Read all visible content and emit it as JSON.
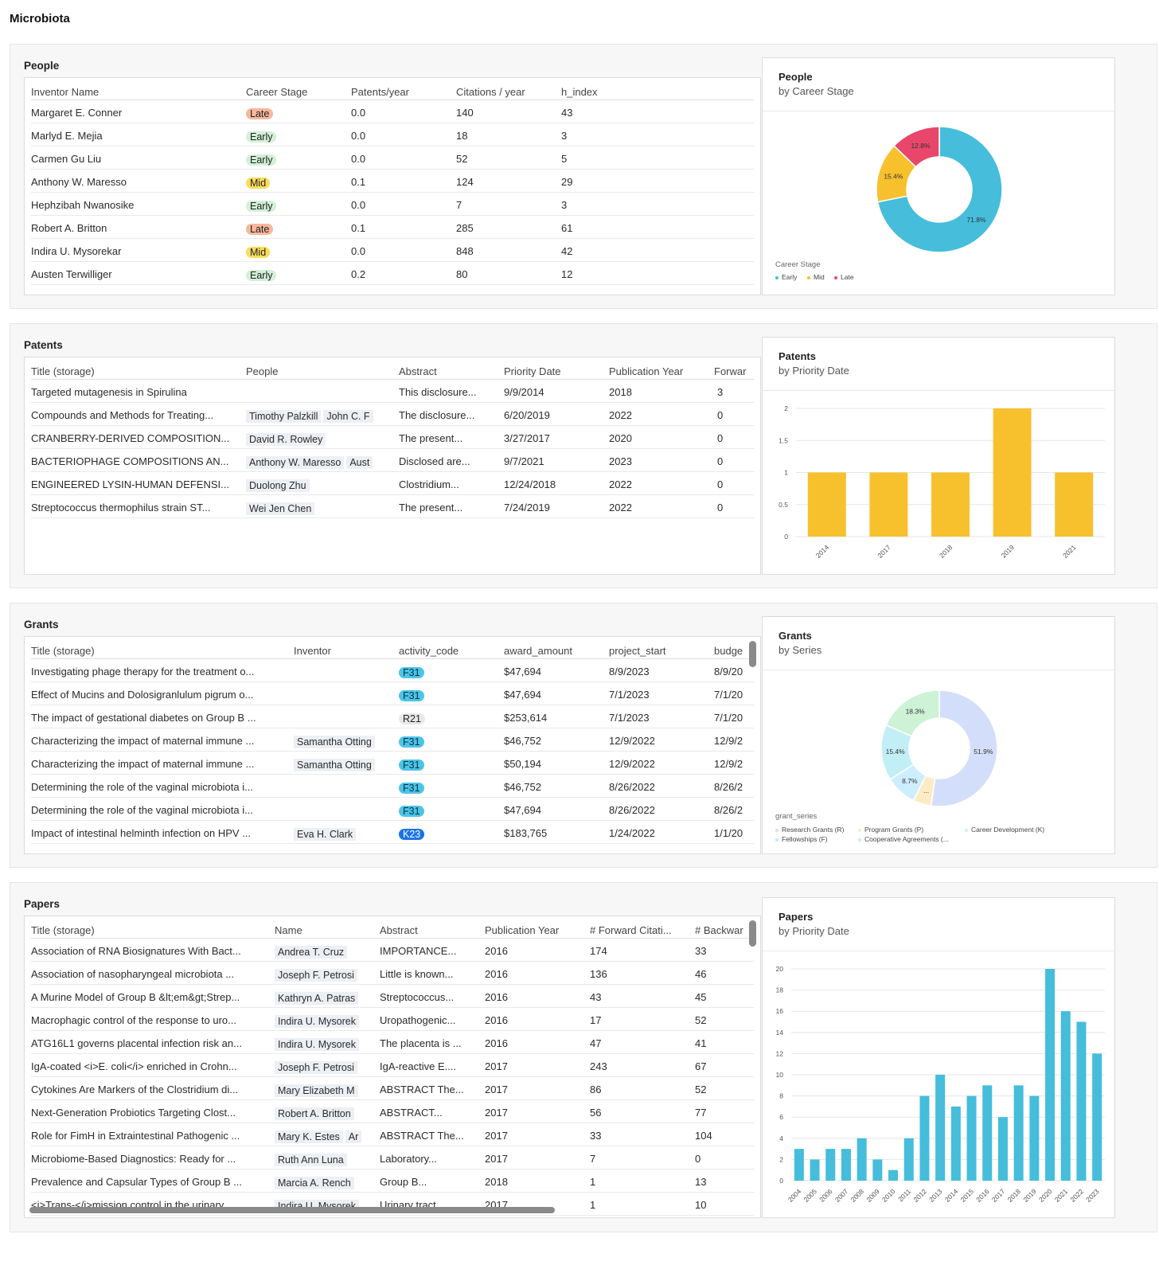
{
  "app": {
    "title": "Microbiota"
  },
  "people": {
    "title": "People",
    "columns": [
      "Inventor Name",
      "Career Stage",
      "Patents/year",
      "Citations / year",
      "h_index"
    ],
    "rows": [
      {
        "name": "Margaret E. Conner",
        "stage": "Late",
        "patents": "0.0",
        "citations": "140",
        "h": "43"
      },
      {
        "name": "Marlyd E. Mejia",
        "stage": "Early",
        "patents": "0.0",
        "citations": "18",
        "h": "3"
      },
      {
        "name": "Carmen Gu Liu",
        "stage": "Early",
        "patents": "0.0",
        "citations": "52",
        "h": "5"
      },
      {
        "name": "Anthony W. Maresso",
        "stage": "Mid",
        "patents": "0.1",
        "citations": "124",
        "h": "29"
      },
      {
        "name": "Hephzibah Nwanosike",
        "stage": "Early",
        "patents": "0.0",
        "citations": "7",
        "h": "3"
      },
      {
        "name": "Robert A. Britton",
        "stage": "Late",
        "patents": "0.1",
        "citations": "285",
        "h": "61"
      },
      {
        "name": "Indira U. Mysorekar",
        "stage": "Mid",
        "patents": "0.0",
        "citations": "848",
        "h": "42"
      },
      {
        "name": "Austen Terwilliger",
        "stage": "Early",
        "patents": "0.2",
        "citations": "80",
        "h": "12"
      }
    ],
    "chart": {
      "title": "People",
      "subtitle": "by Career Stage",
      "legend_title": "Career Stage",
      "legend": [
        "Early",
        "Mid",
        "Late"
      ],
      "colors": [
        "#45bddb",
        "#f7c12e",
        "#e8476b"
      ]
    }
  },
  "patents": {
    "title": "Patents",
    "columns": [
      "Title (storage)",
      "People",
      "Abstract",
      "Priority Date",
      "Publication Year",
      "Forwar"
    ],
    "rows": [
      {
        "title": "Targeted mutagenesis in Spirulina",
        "people": [],
        "abstract": "This disclosure...",
        "priority": "9/9/2014",
        "year": "2018",
        "fwd": "3"
      },
      {
        "title": "Compounds and Methods for Treating...",
        "people": [
          "Timothy Palzkill",
          "John C. F"
        ],
        "abstract": "The disclosure...",
        "priority": "6/20/2019",
        "year": "2022",
        "fwd": "0"
      },
      {
        "title": "CRANBERRY-DERIVED COMPOSITION...",
        "people": [
          "David R. Rowley"
        ],
        "abstract": "The present...",
        "priority": "3/27/2017",
        "year": "2020",
        "fwd": "0"
      },
      {
        "title": "BACTERIOPHAGE COMPOSITIONS AN...",
        "people": [
          "Anthony W. Maresso",
          "Aust"
        ],
        "abstract": "Disclosed are...",
        "priority": "9/7/2021",
        "year": "2023",
        "fwd": "0"
      },
      {
        "title": "ENGINEERED LYSIN-HUMAN DEFENSI...",
        "people": [
          "Duolong Zhu"
        ],
        "abstract": "Clostridium...",
        "priority": "12/24/2018",
        "year": "2022",
        "fwd": "0"
      },
      {
        "title": "Streptococcus thermophilus strain ST...",
        "people": [
          "Wei Jen Chen"
        ],
        "abstract": "The present...",
        "priority": "7/24/2019",
        "year": "2022",
        "fwd": "0"
      }
    ],
    "chart": {
      "title": "Patents",
      "subtitle": "by Priority Date",
      "color": "#f7c12e"
    }
  },
  "grants": {
    "title": "Grants",
    "columns": [
      "Title (storage)",
      "Inventor",
      "activity_code",
      "award_amount",
      "project_start",
      "budge"
    ],
    "rows": [
      {
        "title": "Investigating phage therapy for the treatment o...",
        "inventor": "",
        "code": "F31",
        "amount": "$47,694",
        "start": "8/9/2023",
        "budget": "8/9/20"
      },
      {
        "title": "Effect of Mucins and Dolosigranlulum pigrum o...",
        "inventor": "",
        "code": "F31",
        "amount": "$47,694",
        "start": "7/1/2023",
        "budget": "7/1/20"
      },
      {
        "title": "The impact of gestational diabetes on Group B ...",
        "inventor": "",
        "code": "R21",
        "amount": "$253,614",
        "start": "7/1/2023",
        "budget": "7/1/20"
      },
      {
        "title": "Characterizing the impact of maternal immune ...",
        "inventor": "Samantha Otting",
        "code": "F31",
        "amount": "$46,752",
        "start": "12/9/2022",
        "budget": "12/9/2"
      },
      {
        "title": "Characterizing the impact of maternal immune ...",
        "inventor": "Samantha Otting",
        "code": "F31",
        "amount": "$50,194",
        "start": "12/9/2022",
        "budget": "12/9/2"
      },
      {
        "title": "Determining the role of the vaginal microbiota i...",
        "inventor": "",
        "code": "F31",
        "amount": "$46,752",
        "start": "8/26/2022",
        "budget": "8/26/2"
      },
      {
        "title": "Determining the role of the vaginal microbiota i...",
        "inventor": "",
        "code": "F31",
        "amount": "$47,694",
        "start": "8/26/2022",
        "budget": "8/26/2"
      },
      {
        "title": "Impact of intestinal helminth infection on HPV ...",
        "inventor": "Eva H. Clark",
        "code": "K23",
        "amount": "$183,765",
        "start": "1/24/2022",
        "budget": "1/1/20"
      }
    ],
    "chart": {
      "title": "Grants",
      "subtitle": "by Series",
      "legend_title": "grant_series",
      "legend": [
        "Research Grants (R)",
        "Program Grants (P)",
        "Career Development (K)",
        "Fellowships (F)",
        "Cooperative Agreements (..."
      ],
      "colors": [
        "#d3dffa",
        "#fdebc4",
        "#cdeeff",
        "#c2eef6",
        "#cdf2d6"
      ]
    }
  },
  "papers": {
    "title": "Papers",
    "columns": [
      "Title (storage)",
      "Name",
      "Abstract",
      "Publication Year",
      "# Forward Citati...",
      "# Backwar"
    ],
    "rows": [
      {
        "title": "Association of RNA Biosignatures With Bact...",
        "name": "Andrea T. Cruz",
        "abstract": "IMPORTANCE...",
        "year": "2016",
        "fwd": "174",
        "bwd": "33"
      },
      {
        "title": "Association of nasopharyngeal microbiota ...",
        "name": "Joseph F. Petrosi",
        "abstract": "Little is known...",
        "year": "2016",
        "fwd": "136",
        "bwd": "46"
      },
      {
        "title": "A Murine Model of Group B &lt;em&gt;Strep...",
        "name": "Kathryn A. Patras",
        "abstract": "Streptococcus...",
        "year": "2016",
        "fwd": "43",
        "bwd": "45"
      },
      {
        "title": "Macrophagic control of the response to uro...",
        "name": "Indira U. Mysorek",
        "abstract": "Uropathogenic...",
        "year": "2016",
        "fwd": "17",
        "bwd": "52"
      },
      {
        "title": "ATG16L1 governs placental infection risk an...",
        "name": "Indira U. Mysorek",
        "abstract": "The placenta is ...",
        "year": "2016",
        "fwd": "47",
        "bwd": "41"
      },
      {
        "title": "IgA-coated <i>E. coli</i> enriched in Crohn...",
        "name": "Joseph F. Petrosi",
        "abstract": "IgA-reactive E....",
        "year": "2017",
        "fwd": "243",
        "bwd": "67"
      },
      {
        "title": "Cytokines Are Markers of the Clostridium di...",
        "name": "Mary Elizabeth M",
        "abstract": "ABSTRACT The...",
        "year": "2017",
        "fwd": "86",
        "bwd": "52"
      },
      {
        "title": "Next-Generation Probiotics Targeting Clost...",
        "name": "Robert A. Britton",
        "abstract": "ABSTRACT...",
        "year": "2017",
        "fwd": "56",
        "bwd": "77"
      },
      {
        "title": "Role for FimH in Extraintestinal Pathogenic ...",
        "name": "Mary K. Estes",
        "name2": "Ar",
        "abstract": "ABSTRACT The...",
        "year": "2017",
        "fwd": "33",
        "bwd": "104"
      },
      {
        "title": "Microbiome-Based Diagnostics: Ready for ...",
        "name": "Ruth Ann Luna",
        "abstract": "Laboratory...",
        "year": "2017",
        "fwd": "7",
        "bwd": "0"
      },
      {
        "title": "Prevalence and Capsular Types of Group B ...",
        "name": "Marcia A. Rench",
        "abstract": "Group B...",
        "year": "2018",
        "fwd": "1",
        "bwd": "13"
      },
      {
        "title": "<i>Trans-</i>mission control in the urinary ...",
        "name": "Indira U. Mysorek",
        "abstract": "Urinary tract...",
        "year": "2017",
        "fwd": "1",
        "bwd": "10"
      }
    ],
    "chart": {
      "title": "Papers",
      "subtitle": "by Priority Date",
      "color": "#45bddb"
    }
  },
  "chart_data": [
    {
      "type": "pie",
      "title": "People",
      "subtitle": "by Career Stage",
      "categories": [
        "Early",
        "Mid",
        "Late"
      ],
      "values": [
        71.8,
        15.4,
        12.8
      ],
      "labels": [
        "71.8%",
        "15.4%",
        "12.8%"
      ]
    },
    {
      "type": "bar",
      "title": "Patents",
      "subtitle": "by Priority Date",
      "categories": [
        "2014",
        "2017",
        "2018",
        "2019",
        "2021"
      ],
      "values": [
        1,
        1,
        1,
        2,
        1
      ],
      "yticks": [
        "0",
        "0.5",
        "1",
        "1.5",
        "2"
      ],
      "ylim": [
        0,
        2
      ],
      "grid": true
    },
    {
      "type": "pie",
      "title": "Grants",
      "subtitle": "by Series",
      "categories": [
        "Research Grants (R)",
        "Program Grants (P)",
        "Career Development (K)",
        "Fellowships (F)",
        "Cooperative Agreements (..."
      ],
      "values": [
        51.9,
        5.0,
        8.7,
        15.4,
        18.3
      ],
      "labels": [
        "51.9%",
        "...",
        "8.7%",
        "15.4%",
        "18.3%"
      ]
    },
    {
      "type": "bar",
      "title": "Papers",
      "subtitle": "by Priority Date",
      "categories": [
        "2004",
        "2005",
        "2006",
        "2007",
        "2008",
        "2009",
        "2010",
        "2011",
        "2012",
        "2013",
        "2014",
        "2015",
        "2016",
        "2017",
        "2018",
        "2019",
        "2020",
        "2021",
        "2022",
        "2023"
      ],
      "values": [
        3,
        2,
        3,
        3,
        4,
        2,
        1,
        4,
        8,
        10,
        7,
        8,
        9,
        6,
        9,
        8,
        20,
        16,
        15,
        12
      ],
      "yticks": [
        "0",
        "2",
        "4",
        "6",
        "8",
        "10",
        "12",
        "14",
        "16",
        "18",
        "20"
      ],
      "ylim": [
        0,
        20
      ],
      "grid": true
    }
  ]
}
